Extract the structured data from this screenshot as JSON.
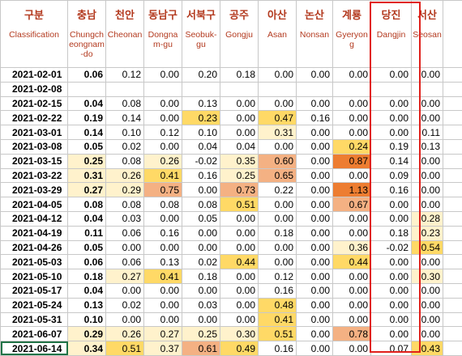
{
  "header": {
    "first": {
      "ko": "구분",
      "en": "Classification"
    },
    "columns": [
      {
        "ko": "충남",
        "en": "Chungcheongnam-do"
      },
      {
        "ko": "천안",
        "en": "Cheonan"
      },
      {
        "ko": "동남구",
        "en": "Dongnam-gu"
      },
      {
        "ko": "서북구",
        "en": "Seobuk-gu"
      },
      {
        "ko": "공주",
        "en": "Gongju"
      },
      {
        "ko": "아산",
        "en": "Asan"
      },
      {
        "ko": "논산",
        "en": "Nonsan"
      },
      {
        "ko": "계룡",
        "en": "Gyeryong"
      },
      {
        "ko": "당진",
        "en": "Dangjin"
      },
      {
        "ko": "서산",
        "en": "Seosan"
      },
      {
        "ko": "",
        "en": ""
      }
    ]
  },
  "rows": [
    {
      "date": "2021-02-01",
      "values": [
        "0.06",
        "0.12",
        "0.00",
        "0.20",
        "0.18",
        "0.00",
        "0.00",
        "0.00",
        "0.00",
        "0.00",
        ""
      ]
    },
    {
      "date": "2021-02-08",
      "values": [
        "",
        "",
        "",
        "",
        "",
        "",
        "",
        "",
        "",
        "",
        ""
      ]
    },
    {
      "date": "2021-02-15",
      "values": [
        "0.04",
        "0.08",
        "0.00",
        "0.13",
        "0.00",
        "0.00",
        "0.00",
        "0.00",
        "0.00",
        "0.00",
        ""
      ]
    },
    {
      "date": "2021-02-22",
      "values": [
        "0.19",
        "0.14",
        "0.00",
        "0.23",
        "0.00",
        "0.47",
        "0.16",
        "0.00",
        "0.00",
        "0.00",
        ""
      ]
    },
    {
      "date": "2021-03-01",
      "values": [
        "0.14",
        "0.10",
        "0.12",
        "0.10",
        "0.00",
        "0.31",
        "0.00",
        "0.00",
        "0.00",
        "0.11",
        ""
      ]
    },
    {
      "date": "2021-03-08",
      "values": [
        "0.05",
        "0.02",
        "0.00",
        "0.04",
        "0.04",
        "0.00",
        "0.00",
        "0.24",
        "0.19",
        "0.13",
        ""
      ]
    },
    {
      "date": "2021-03-15",
      "values": [
        "0.25",
        "0.08",
        "0.26",
        "-0.02",
        "0.35",
        "0.60",
        "0.00",
        "0.87",
        "0.14",
        "0.00",
        ""
      ]
    },
    {
      "date": "2021-03-22",
      "values": [
        "0.31",
        "0.26",
        "0.41",
        "0.16",
        "0.25",
        "0.65",
        "0.00",
        "0.00",
        "0.09",
        "0.00",
        ""
      ]
    },
    {
      "date": "2021-03-29",
      "values": [
        "0.27",
        "0.29",
        "0.75",
        "0.00",
        "0.73",
        "0.22",
        "0.00",
        "1.13",
        "0.16",
        "0.00",
        ""
      ]
    },
    {
      "date": "2021-04-05",
      "values": [
        "0.08",
        "0.08",
        "0.08",
        "0.08",
        "0.51",
        "0.00",
        "0.00",
        "0.67",
        "0.00",
        "0.00",
        ""
      ]
    },
    {
      "date": "2021-04-12",
      "values": [
        "0.04",
        "0.03",
        "0.00",
        "0.05",
        "0.00",
        "0.00",
        "0.00",
        "0.00",
        "0.00",
        "0.28",
        ""
      ]
    },
    {
      "date": "2021-04-19",
      "values": [
        "0.11",
        "0.06",
        "0.16",
        "0.00",
        "0.00",
        "0.18",
        "0.00",
        "0.00",
        "0.18",
        "0.23",
        ""
      ]
    },
    {
      "date": "2021-04-26",
      "values": [
        "0.05",
        "0.00",
        "0.00",
        "0.00",
        "0.00",
        "0.00",
        "0.00",
        "0.36",
        "-0.02",
        "0.54",
        ""
      ]
    },
    {
      "date": "2021-05-03",
      "values": [
        "0.06",
        "0.06",
        "0.13",
        "0.02",
        "0.44",
        "0.00",
        "0.00",
        "0.44",
        "0.00",
        "0.00",
        ""
      ]
    },
    {
      "date": "2021-05-10",
      "values": [
        "0.18",
        "0.27",
        "0.41",
        "0.18",
        "0.00",
        "0.12",
        "0.00",
        "0.00",
        "0.00",
        "0.30",
        ""
      ]
    },
    {
      "date": "2021-05-17",
      "values": [
        "0.04",
        "0.00",
        "0.00",
        "0.00",
        "0.00",
        "0.16",
        "0.00",
        "0.00",
        "0.00",
        "0.00",
        ""
      ]
    },
    {
      "date": "2021-05-24",
      "values": [
        "0.13",
        "0.02",
        "0.00",
        "0.03",
        "0.00",
        "0.48",
        "0.00",
        "0.00",
        "0.00",
        "0.00",
        ""
      ]
    },
    {
      "date": "2021-05-31",
      "values": [
        "0.10",
        "0.00",
        "0.00",
        "0.00",
        "0.00",
        "0.41",
        "0.00",
        "0.00",
        "0.00",
        "0.00",
        ""
      ]
    },
    {
      "date": "2021-06-07",
      "values": [
        "0.29",
        "0.26",
        "0.27",
        "0.25",
        "0.30",
        "0.51",
        "0.00",
        "0.78",
        "0.00",
        "0.00",
        ""
      ]
    },
    {
      "date": "2021-06-14",
      "values": [
        "0.34",
        "0.51",
        "0.37",
        "0.61",
        "0.49",
        "0.16",
        "0.00",
        "0.00",
        "0.07",
        "0.43",
        ""
      ]
    }
  ],
  "shading": [
    [
      0,
      0,
      0,
      0,
      0,
      0,
      0,
      0,
      0,
      0,
      0
    ],
    [
      0,
      0,
      0,
      0,
      0,
      0,
      0,
      0,
      0,
      0,
      0
    ],
    [
      0,
      0,
      0,
      0,
      0,
      0,
      0,
      0,
      0,
      0,
      0
    ],
    [
      0,
      0,
      0,
      2,
      0,
      2,
      0,
      0,
      0,
      0,
      0
    ],
    [
      0,
      0,
      0,
      0,
      0,
      1,
      0,
      0,
      0,
      0,
      0
    ],
    [
      0,
      0,
      0,
      0,
      0,
      0,
      0,
      2,
      0,
      0,
      0
    ],
    [
      1,
      0,
      1,
      0,
      1,
      3,
      0,
      4,
      0,
      0,
      0
    ],
    [
      1,
      1,
      2,
      0,
      1,
      3,
      0,
      0,
      0,
      0,
      0
    ],
    [
      1,
      1,
      3,
      0,
      3,
      0,
      0,
      4,
      0,
      0,
      0
    ],
    [
      0,
      0,
      0,
      0,
      2,
      0,
      0,
      3,
      0,
      0,
      0
    ],
    [
      0,
      0,
      0,
      0,
      0,
      0,
      0,
      0,
      0,
      1,
      0
    ],
    [
      0,
      0,
      0,
      0,
      0,
      0,
      0,
      0,
      0,
      1,
      0
    ],
    [
      0,
      0,
      0,
      0,
      0,
      0,
      0,
      1,
      0,
      2,
      0
    ],
    [
      0,
      0,
      0,
      0,
      2,
      0,
      0,
      2,
      0,
      0,
      0
    ],
    [
      0,
      1,
      2,
      0,
      0,
      0,
      0,
      0,
      0,
      1,
      0
    ],
    [
      0,
      0,
      0,
      0,
      0,
      0,
      0,
      0,
      0,
      0,
      0
    ],
    [
      0,
      0,
      0,
      0,
      0,
      2,
      0,
      0,
      0,
      0,
      0
    ],
    [
      0,
      0,
      0,
      0,
      0,
      2,
      0,
      0,
      0,
      0,
      0
    ],
    [
      1,
      1,
      1,
      1,
      1,
      2,
      0,
      3,
      0,
      0,
      0
    ],
    [
      1,
      2,
      1,
      3,
      2,
      0,
      0,
      0,
      0,
      2,
      0
    ]
  ],
  "selected_row": 19,
  "colors": {
    "header_text": "#b33a1f",
    "highlight": "#e0201b",
    "selection": "#217346"
  }
}
